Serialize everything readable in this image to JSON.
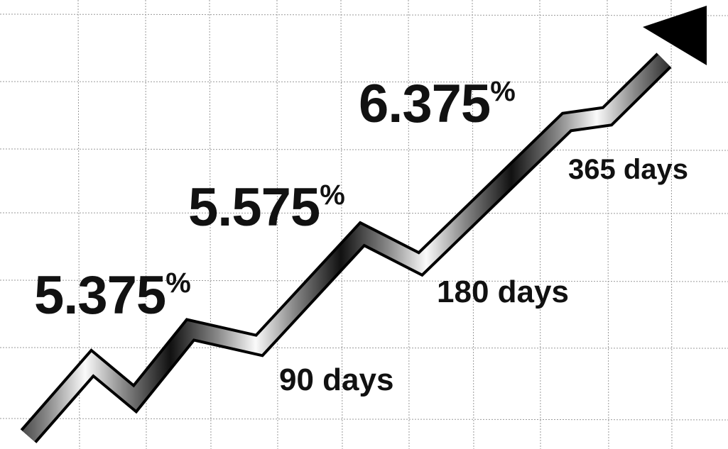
{
  "rates": [
    {
      "rate": "5.375",
      "unit": "%",
      "term": "90 days"
    },
    {
      "rate": "5.575",
      "unit": "%",
      "term": "180 days"
    },
    {
      "rate": "6.375",
      "unit": "%",
      "term": "365 days"
    }
  ]
}
